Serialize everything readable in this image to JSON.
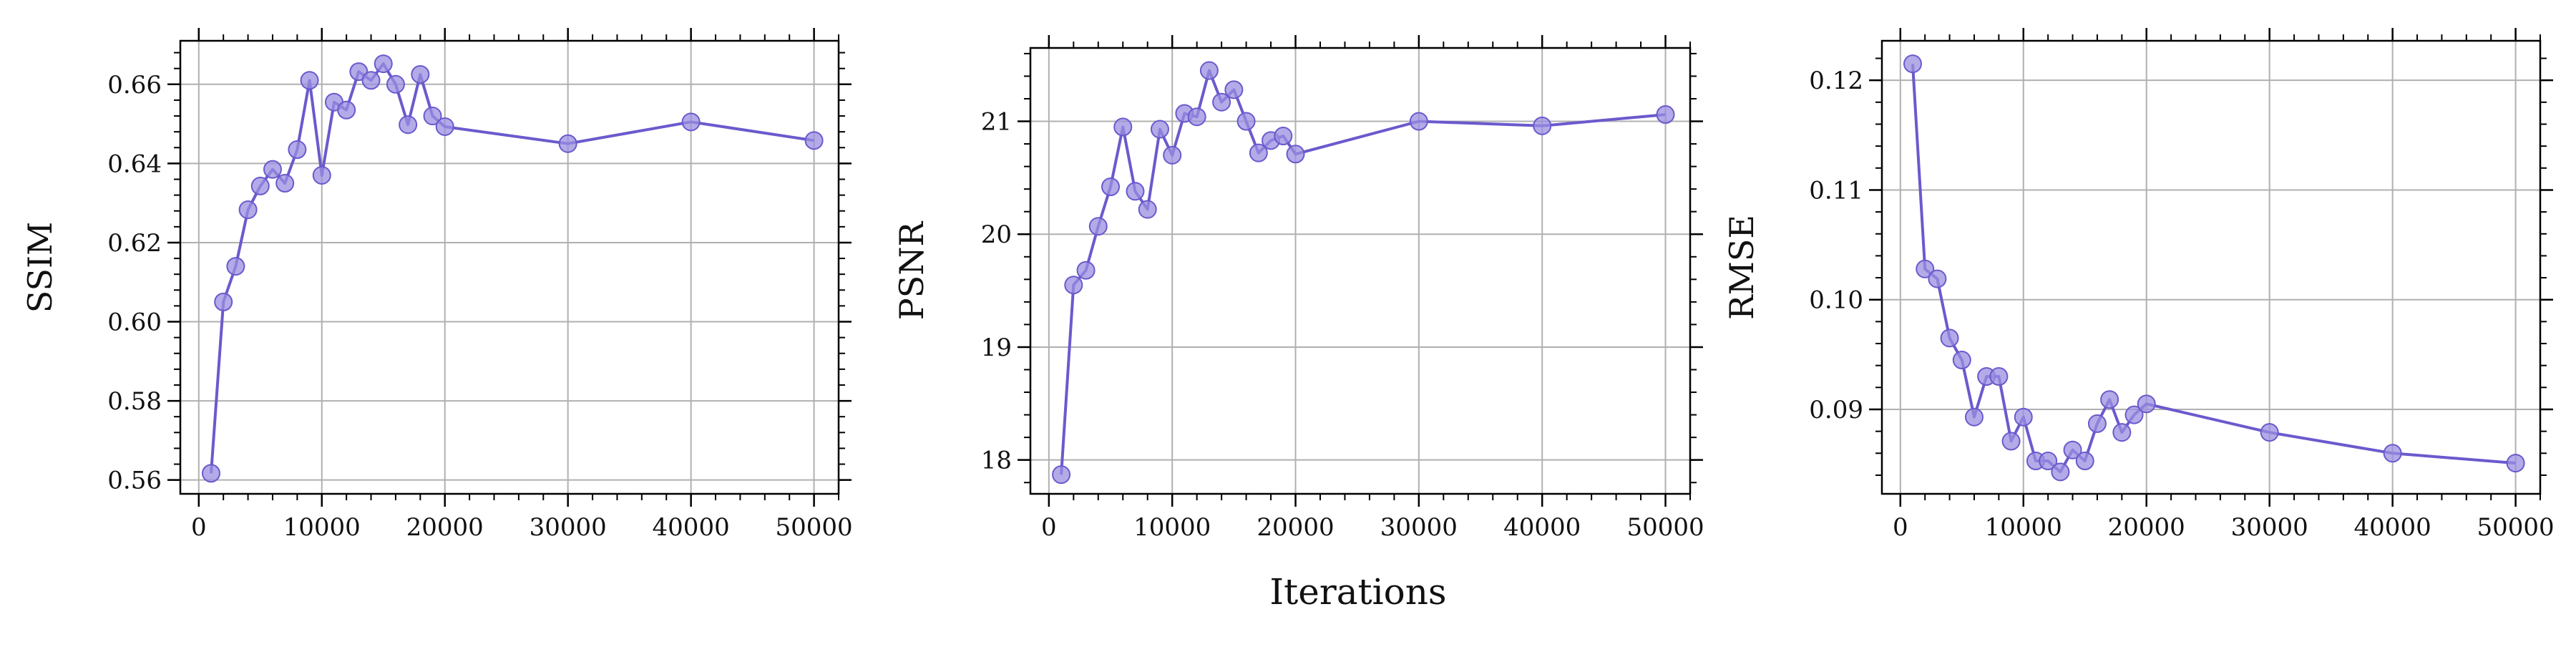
{
  "shared_xlabel": "Iterations",
  "style": {
    "line_color": "#6a5acd",
    "marker_fill": "#9a8fe0",
    "marker_edge": "#6a5acd",
    "grid_color": "#b0b0b0",
    "axis_color": "#000000"
  },
  "chart_data": [
    {
      "type": "line",
      "ylabel": "SSIM",
      "xlabel": "",
      "x": [
        1000,
        2000,
        3000,
        4000,
        5000,
        6000,
        7000,
        8000,
        9000,
        10000,
        11000,
        12000,
        13000,
        14000,
        15000,
        16000,
        17000,
        18000,
        19000,
        20000,
        30000,
        40000,
        50000
      ],
      "series": [
        {
          "values": [
            0.5617,
            0.605,
            0.614,
            0.6283,
            0.6343,
            0.6385,
            0.635,
            0.6435,
            0.661,
            0.637,
            0.6555,
            0.6535,
            0.6632,
            0.661,
            0.6652,
            0.66,
            0.6498,
            0.6625,
            0.652,
            0.6493,
            0.645,
            0.6505,
            0.6458
          ]
        }
      ],
      "xlim": [
        -1500,
        52000
      ],
      "ylim": [
        0.5565,
        0.671
      ],
      "xticks": [
        0,
        10000,
        20000,
        30000,
        40000,
        50000
      ],
      "xtick_labels": [
        "0",
        "10000",
        "20000",
        "30000",
        "40000",
        "50000"
      ],
      "yticks": [
        0.56,
        0.58,
        0.6,
        0.62,
        0.64,
        0.66
      ],
      "ytick_labels": [
        "0.56",
        "0.58",
        "0.60",
        "0.62",
        "0.64",
        "0.66"
      ],
      "grid": true
    },
    {
      "type": "line",
      "ylabel": "PSNR",
      "xlabel": "",
      "x": [
        1000,
        2000,
        3000,
        4000,
        5000,
        6000,
        7000,
        8000,
        9000,
        10000,
        11000,
        12000,
        13000,
        14000,
        15000,
        16000,
        17000,
        18000,
        19000,
        20000,
        30000,
        40000,
        50000
      ],
      "series": [
        {
          "values": [
            17.87,
            19.55,
            19.68,
            20.07,
            20.42,
            20.95,
            20.38,
            20.22,
            20.93,
            20.7,
            21.07,
            21.04,
            21.45,
            21.17,
            21.28,
            21.0,
            20.72,
            20.83,
            20.87,
            20.71,
            21.0,
            20.96,
            21.06
          ]
        }
      ],
      "xlim": [
        -1500,
        52000
      ],
      "ylim": [
        17.7,
        21.65
      ],
      "xticks": [
        0,
        10000,
        20000,
        30000,
        40000,
        50000
      ],
      "xtick_labels": [
        "0",
        "10000",
        "20000",
        "30000",
        "40000",
        "50000"
      ],
      "yticks": [
        18,
        19,
        20,
        21
      ],
      "ytick_labels": [
        "18",
        "19",
        "20",
        "21"
      ],
      "grid": true
    },
    {
      "type": "line",
      "ylabel": "RMSE",
      "xlabel": "",
      "x": [
        1000,
        2000,
        3000,
        4000,
        5000,
        6000,
        7000,
        8000,
        9000,
        10000,
        11000,
        12000,
        13000,
        14000,
        15000,
        16000,
        17000,
        18000,
        19000,
        20000,
        30000,
        40000,
        50000
      ],
      "series": [
        {
          "values": [
            0.1215,
            0.1028,
            0.1019,
            0.0965,
            0.0945,
            0.0893,
            0.093,
            0.093,
            0.0871,
            0.0893,
            0.0853,
            0.0853,
            0.0843,
            0.0863,
            0.0853,
            0.0887,
            0.0909,
            0.0879,
            0.0895,
            0.0905,
            0.0879,
            0.086,
            0.0851
          ]
        }
      ],
      "xlim": [
        -1500,
        52000
      ],
      "ylim": [
        0.0823,
        0.1236
      ],
      "xticks": [
        0,
        10000,
        20000,
        30000,
        40000,
        50000
      ],
      "xtick_labels": [
        "0",
        "10000",
        "20000",
        "30000",
        "40000",
        "50000"
      ],
      "yticks": [
        0.09,
        0.1,
        0.11,
        0.12
      ],
      "ytick_labels": [
        "0.09",
        "0.10",
        "0.11",
        "0.12"
      ],
      "grid": true
    }
  ]
}
